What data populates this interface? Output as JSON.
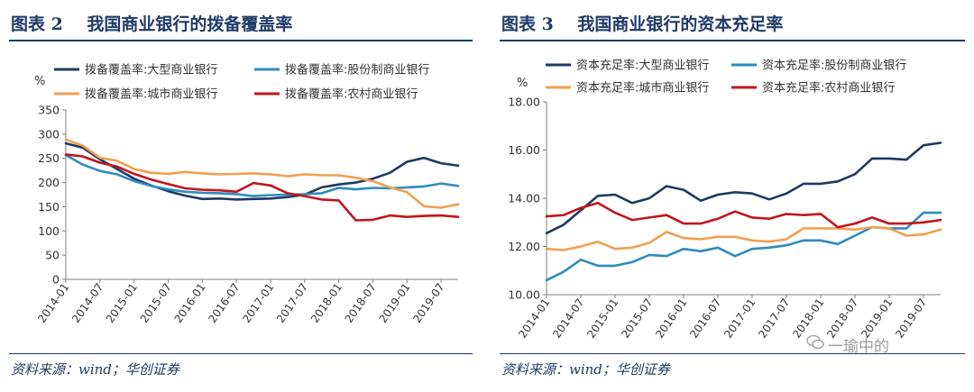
{
  "chart_data": [
    {
      "type": "line",
      "figure_label": "图表 2",
      "title": "我国商业银行的拨备覆盖率",
      "ylabel": "%",
      "ylim": [
        0,
        350
      ],
      "yticks": [
        0,
        50,
        100,
        150,
        200,
        250,
        300,
        350
      ],
      "categories": [
        "2014-01",
        "2014-04",
        "2014-07",
        "2014-10",
        "2015-01",
        "2015-04",
        "2015-07",
        "2015-10",
        "2016-01",
        "2016-04",
        "2016-07",
        "2016-10",
        "2017-01",
        "2017-04",
        "2017-07",
        "2017-10",
        "2018-01",
        "2018-04",
        "2018-07",
        "2018-10",
        "2019-01",
        "2019-04",
        "2019-07",
        "2019-10"
      ],
      "xtick_labels": [
        "2014-01",
        "2014-07",
        "2015-01",
        "2015-07",
        "2016-01",
        "2016-07",
        "2017-01",
        "2017-07",
        "2018-01",
        "2018-07",
        "2019-01",
        "2019-07"
      ],
      "series": [
        {
          "name": "拨备覆盖率:大型商业银行",
          "color": "#1f3864",
          "values": [
            281,
            272,
            248,
            228,
            208,
            194,
            182,
            173,
            166,
            167,
            165,
            166,
            167,
            170,
            175,
            190,
            196,
            200,
            208,
            220,
            243,
            251,
            240,
            235
          ]
        },
        {
          "name": "拨备覆盖率:股份制商业银行",
          "color": "#2e8bc0",
          "values": [
            257,
            237,
            224,
            217,
            203,
            193,
            186,
            181,
            179,
            178,
            176,
            172,
            174,
            175,
            176,
            178,
            189,
            186,
            189,
            188,
            190,
            192,
            198,
            193
          ]
        },
        {
          "name": "拨备覆盖率:城市商业银行",
          "color": "#f0a050",
          "values": [
            289,
            276,
            251,
            245,
            228,
            220,
            218,
            222,
            219,
            217,
            218,
            219,
            217,
            213,
            217,
            215,
            215,
            210,
            203,
            190,
            180,
            151,
            148,
            155
          ]
        },
        {
          "name": "拨备覆盖率:农村商业银行",
          "color": "#c0161c",
          "values": [
            258,
            254,
            241,
            233,
            218,
            206,
            197,
            188,
            185,
            184,
            181,
            199,
            194,
            178,
            172,
            165,
            163,
            122,
            123,
            132,
            129,
            131,
            132,
            129
          ]
        }
      ]
    },
    {
      "type": "line",
      "figure_label": "图表 3",
      "title": "我国商业银行的资本充足率",
      "ylabel": "%",
      "ylim": [
        10,
        18
      ],
      "yticks": [
        "10.00",
        "12.00",
        "14.00",
        "16.00",
        "18.00"
      ],
      "categories": [
        "2014-01",
        "2014-04",
        "2014-07",
        "2014-10",
        "2015-01",
        "2015-04",
        "2015-07",
        "2015-10",
        "2016-01",
        "2016-04",
        "2016-07",
        "2016-10",
        "2017-01",
        "2017-04",
        "2017-07",
        "2017-10",
        "2018-01",
        "2018-04",
        "2018-07",
        "2018-10",
        "2019-01",
        "2019-04",
        "2019-07",
        "2019-10"
      ],
      "xtick_labels": [
        "2014-01",
        "2014-07",
        "2015-01",
        "2015-07",
        "2016-01",
        "2016-07",
        "2017-01",
        "2017-07",
        "2018-01",
        "2018-07",
        "2019-01",
        "2019-07"
      ],
      "series": [
        {
          "name": "资本充足率:大型商业银行",
          "color": "#1f3864",
          "values": [
            12.55,
            12.9,
            13.5,
            14.1,
            14.15,
            13.8,
            14.0,
            14.5,
            14.35,
            13.9,
            14.15,
            14.25,
            14.2,
            13.95,
            14.2,
            14.6,
            14.6,
            14.7,
            15.0,
            15.65,
            15.65,
            15.6,
            16.2,
            16.3
          ]
        },
        {
          "name": "资本充足率:股份制商业银行",
          "color": "#2e8bc0",
          "values": [
            10.6,
            10.95,
            11.45,
            11.2,
            11.2,
            11.35,
            11.65,
            11.6,
            11.9,
            11.8,
            11.95,
            11.6,
            11.9,
            11.95,
            12.05,
            12.25,
            12.25,
            12.1,
            12.45,
            12.8,
            12.75,
            12.75,
            13.4,
            13.4
          ]
        },
        {
          "name": "资本充足率:城市商业银行",
          "color": "#f0a050",
          "values": [
            11.9,
            11.85,
            12.0,
            12.2,
            11.9,
            11.95,
            12.15,
            12.6,
            12.35,
            12.3,
            12.4,
            12.4,
            12.25,
            12.2,
            12.3,
            12.75,
            12.75,
            12.75,
            12.7,
            12.8,
            12.75,
            12.45,
            12.5,
            12.7
          ]
        },
        {
          "name": "资本充足率:农村商业银行",
          "color": "#c0161c",
          "values": [
            13.25,
            13.3,
            13.6,
            13.8,
            13.4,
            13.1,
            13.2,
            13.3,
            12.95,
            12.95,
            13.15,
            13.45,
            13.2,
            13.15,
            13.35,
            13.3,
            13.35,
            12.8,
            12.95,
            13.2,
            12.95,
            12.95,
            13.0,
            13.1
          ]
        }
      ]
    }
  ],
  "source_left": "资料来源：wind；华创证券",
  "source_right": "资料来源：wind；华创证券",
  "watermark": "一瑜中的",
  "colors": {
    "title": "#1f3b66",
    "axis": "#7f7f7f"
  }
}
